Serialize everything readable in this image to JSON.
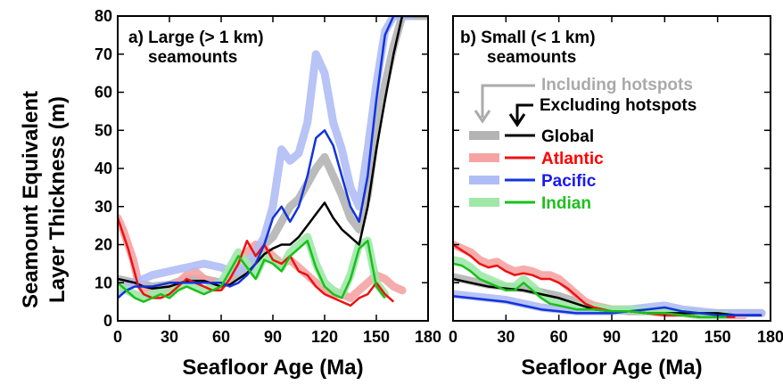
{
  "y_axis_title_line1": "Seamount Equivalent",
  "y_axis_title_line2": "Layer Thickness (m)",
  "legend": {
    "including_label": "Including hotspots",
    "excluding_label": "Excluding hotspots",
    "entries": [
      {
        "label": "Global",
        "text_color": "#000000",
        "band_color": "#b4b4b4",
        "line_color": "#000000"
      },
      {
        "label": "Atlantic",
        "text_color": "#ff0000",
        "band_color": "#f5a3a3",
        "line_color": "#ee1111"
      },
      {
        "label": "Pacific",
        "text_color": "#1a1aee",
        "band_color": "#b0bcf5",
        "line_color": "#1133dd"
      },
      {
        "label": "Indian",
        "text_color": "#1ec01e",
        "band_color": "#9fe8a8",
        "line_color": "#19c019"
      }
    ]
  },
  "chart_data": [
    {
      "type": "line",
      "title_line1": "a) Large (> 1 km)",
      "title_line2": "seamounts",
      "xlabel": "Seafloor Age (Ma)",
      "ylabel": "Seamount Equivalent Layer Thickness (m)",
      "xlim": [
        0,
        180
      ],
      "ylim": [
        0,
        80
      ],
      "xticks": [
        0,
        30,
        60,
        90,
        120,
        150,
        180
      ],
      "yticks": [
        0,
        10,
        20,
        30,
        40,
        50,
        60,
        70,
        80
      ],
      "series": [
        {
          "name": "Global",
          "variant": "including hotspots",
          "x": [
            0,
            5,
            10,
            15,
            20,
            30,
            40,
            50,
            60,
            65,
            70,
            75,
            80,
            85,
            90,
            95,
            100,
            105,
            110,
            115,
            120,
            125,
            130,
            135,
            140,
            145,
            150,
            155,
            160,
            165,
            170,
            175,
            180
          ],
          "y": [
            11,
            10.5,
            10,
            9.5,
            9,
            9.5,
            11,
            11,
            10,
            10.5,
            12,
            14,
            17,
            20,
            22,
            26,
            30,
            32,
            36,
            40,
            43,
            38,
            33,
            27,
            24,
            33,
            50,
            62,
            72,
            80,
            80,
            80,
            80
          ]
        },
        {
          "name": "Global",
          "variant": "excluding hotspots",
          "x": [
            0,
            5,
            10,
            15,
            20,
            30,
            40,
            50,
            60,
            65,
            70,
            75,
            80,
            85,
            90,
            95,
            100,
            105,
            110,
            115,
            120,
            125,
            130,
            135,
            140,
            145,
            150,
            155,
            160,
            165,
            170,
            175,
            180
          ],
          "y": [
            11,
            10.5,
            10,
            9,
            8.5,
            9,
            10.5,
            10.5,
            9,
            9.5,
            11,
            12.5,
            15,
            17.5,
            19,
            20,
            20,
            22,
            25,
            28,
            31,
            27,
            24,
            22,
            20,
            30,
            45,
            58,
            70,
            80,
            80,
            80,
            80
          ]
        },
        {
          "name": "Atlantic",
          "variant": "including hotspots",
          "x": [
            0,
            3,
            6,
            9,
            12,
            15,
            20,
            25,
            30,
            35,
            40,
            45,
            50,
            55,
            60,
            65,
            70,
            75,
            80,
            85,
            90,
            95,
            100,
            105,
            110,
            115,
            120,
            125,
            130,
            135,
            140,
            145,
            150,
            155,
            160,
            165
          ],
          "y": [
            27,
            24,
            20,
            16,
            10,
            8,
            7,
            7,
            8,
            10,
            12,
            13,
            11,
            10,
            9,
            12,
            16,
            18,
            20,
            19,
            17,
            15,
            16,
            14,
            12,
            10,
            8,
            7,
            7,
            6,
            8,
            10,
            12,
            11,
            9,
            8
          ]
        },
        {
          "name": "Atlantic",
          "variant": "excluding hotspots",
          "x": [
            0,
            3,
            6,
            9,
            12,
            15,
            20,
            25,
            30,
            35,
            40,
            45,
            50,
            55,
            60,
            65,
            70,
            75,
            80,
            85,
            90,
            95,
            100,
            105,
            110,
            115,
            120,
            125,
            130,
            135,
            140,
            145,
            150,
            155,
            160
          ],
          "y": [
            27,
            23,
            19,
            14,
            9,
            7,
            6,
            6,
            7,
            9,
            11,
            10,
            9,
            8,
            8,
            11,
            15,
            21,
            17,
            20,
            16,
            15,
            17,
            13,
            12,
            9,
            7,
            6,
            5,
            4,
            6,
            7,
            10,
            7,
            5
          ]
        },
        {
          "name": "Pacific",
          "variant": "including hotspots",
          "x": [
            0,
            5,
            10,
            15,
            20,
            30,
            40,
            50,
            60,
            65,
            70,
            75,
            80,
            85,
            90,
            95,
            100,
            105,
            110,
            115,
            120,
            125,
            130,
            135,
            140,
            145,
            150,
            155,
            160,
            165,
            170
          ],
          "y": [
            7,
            9,
            10,
            11,
            12,
            13,
            14,
            15,
            14,
            13,
            13,
            15,
            18,
            22,
            30,
            45,
            42,
            44,
            52,
            70,
            65,
            52,
            45,
            35,
            30,
            45,
            62,
            76,
            80,
            80,
            80
          ]
        },
        {
          "name": "Pacific",
          "variant": "excluding hotspots",
          "x": [
            0,
            5,
            10,
            15,
            20,
            30,
            40,
            50,
            60,
            65,
            70,
            75,
            80,
            85,
            90,
            95,
            100,
            105,
            110,
            115,
            120,
            125,
            130,
            135,
            140,
            145,
            150,
            155,
            160,
            165
          ],
          "y": [
            6,
            8,
            9,
            9,
            9,
            10,
            10,
            10,
            10,
            9,
            10,
            12,
            15,
            20,
            27,
            30,
            26,
            30,
            38,
            48,
            50,
            46,
            38,
            30,
            26,
            38,
            58,
            75,
            80,
            80
          ]
        },
        {
          "name": "Indian",
          "variant": "including hotspots",
          "x": [
            0,
            5,
            10,
            15,
            20,
            25,
            30,
            35,
            40,
            45,
            50,
            55,
            60,
            65,
            70,
            75,
            80,
            85,
            90,
            95,
            100,
            105,
            110,
            115,
            120,
            125,
            130,
            135,
            140,
            145,
            150,
            155
          ],
          "y": [
            9,
            8,
            7,
            6,
            7,
            8,
            7,
            9,
            10,
            9,
            8,
            9,
            10,
            14,
            18,
            15,
            12,
            17,
            16,
            14,
            18,
            20,
            22,
            15,
            10,
            8,
            7,
            12,
            20,
            21,
            10,
            7
          ]
        },
        {
          "name": "Indian",
          "variant": "excluding hotspots",
          "x": [
            0,
            5,
            10,
            15,
            20,
            25,
            30,
            35,
            40,
            45,
            50,
            55,
            60,
            65,
            70,
            75,
            80,
            85,
            90,
            95,
            100,
            105,
            110,
            115,
            120,
            125,
            130,
            135,
            140,
            145,
            150,
            155
          ],
          "y": [
            10,
            8,
            6,
            5,
            6,
            7,
            6,
            8,
            9,
            8,
            7,
            8,
            9,
            13,
            17,
            14,
            11,
            16,
            15,
            13,
            17,
            19,
            21,
            14,
            9,
            7,
            6,
            11,
            19,
            21,
            9,
            6
          ]
        }
      ]
    },
    {
      "type": "line",
      "title_line1": "b) Small (< 1 km)",
      "title_line2": "seamounts",
      "xlabel": "Seafloor Age (Ma)",
      "xlim": [
        0,
        180
      ],
      "ylim": [
        0,
        80
      ],
      "xticks": [
        0,
        30,
        60,
        90,
        120,
        150,
        180
      ],
      "yticks": [
        0,
        10,
        20,
        30,
        40,
        50,
        60,
        70,
        80
      ],
      "series": [
        {
          "name": "Global",
          "variant": "including hotspots",
          "x": [
            0,
            10,
            20,
            30,
            40,
            50,
            60,
            70,
            80,
            90,
            100,
            110,
            120,
            130,
            140,
            150,
            160,
            170,
            175
          ],
          "y": [
            11.5,
            10.5,
            9.5,
            9,
            8.5,
            7.5,
            6.5,
            5,
            3.5,
            3,
            2.5,
            2.5,
            2.5,
            2.5,
            2,
            2,
            2,
            2,
            2
          ]
        },
        {
          "name": "Global",
          "variant": "excluding hotspots",
          "x": [
            0,
            10,
            20,
            30,
            40,
            50,
            60,
            70,
            80,
            90,
            100,
            110,
            120,
            130,
            140,
            150,
            160,
            170,
            175
          ],
          "y": [
            11,
            10,
            9,
            8.5,
            8,
            7,
            6,
            4.5,
            3,
            2.5,
            2.5,
            2,
            2,
            2,
            2,
            2,
            1.5,
            1.5,
            1.5
          ]
        },
        {
          "name": "Atlantic",
          "variant": "including hotspots",
          "x": [
            0,
            5,
            10,
            15,
            20,
            25,
            30,
            35,
            40,
            45,
            50,
            55,
            60,
            65,
            70,
            75,
            80,
            90,
            100,
            110,
            120,
            130,
            140,
            150,
            160,
            165
          ],
          "y": [
            20,
            19,
            18,
            16,
            15,
            15.5,
            14,
            13,
            13.5,
            13,
            12,
            12,
            11,
            9,
            7,
            5,
            4,
            3,
            3,
            2.5,
            2,
            2,
            1.5,
            1.5,
            1.5,
            1.5
          ]
        },
        {
          "name": "Atlantic",
          "variant": "excluding hotspots",
          "x": [
            0,
            5,
            10,
            15,
            20,
            25,
            30,
            35,
            40,
            45,
            50,
            55,
            60,
            65,
            70,
            75,
            80,
            90,
            100,
            110,
            120,
            130,
            140,
            150,
            160
          ],
          "y": [
            20,
            18.5,
            17,
            15,
            14,
            14.5,
            13,
            12,
            12.5,
            12,
            11,
            11,
            10,
            8.5,
            6.5,
            4.5,
            3.5,
            2.5,
            2.5,
            2,
            1.5,
            1.5,
            1,
            1,
            1
          ]
        },
        {
          "name": "Pacific",
          "variant": "including hotspots",
          "x": [
            0,
            10,
            20,
            30,
            40,
            50,
            60,
            70,
            80,
            90,
            100,
            110,
            120,
            130,
            140,
            150,
            160,
            170,
            175
          ],
          "y": [
            7,
            6.5,
            6,
            5.5,
            4.5,
            3.5,
            3,
            2.5,
            2.5,
            2.5,
            3,
            3.5,
            4,
            3,
            2.5,
            2,
            2,
            2,
            2
          ]
        },
        {
          "name": "Pacific",
          "variant": "excluding hotspots",
          "x": [
            0,
            10,
            20,
            30,
            40,
            50,
            60,
            70,
            80,
            90,
            100,
            110,
            120,
            130,
            140,
            150,
            160,
            170,
            175
          ],
          "y": [
            6.5,
            6,
            5.5,
            5,
            4,
            3,
            2.5,
            2,
            2,
            2,
            2.5,
            3,
            3.5,
            2.5,
            2,
            1.5,
            1.5,
            1.5,
            1.5
          ]
        },
        {
          "name": "Indian",
          "variant": "including hotspots",
          "x": [
            0,
            5,
            10,
            15,
            20,
            25,
            30,
            35,
            40,
            45,
            50,
            55,
            60,
            65,
            70,
            80,
            90,
            100,
            110,
            120,
            130,
            140,
            150,
            155
          ],
          "y": [
            16,
            15.5,
            14,
            12,
            11,
            10,
            9,
            9,
            11,
            9,
            7,
            5.5,
            5,
            4.5,
            4,
            3.5,
            3,
            3,
            2.5,
            2.5,
            2,
            1.5,
            1.5,
            1.5
          ]
        },
        {
          "name": "Indian",
          "variant": "excluding hotspots",
          "x": [
            0,
            5,
            10,
            15,
            20,
            25,
            30,
            35,
            40,
            45,
            50,
            55,
            60,
            65,
            70,
            80,
            90,
            100,
            110,
            120,
            130,
            140,
            150,
            155
          ],
          "y": [
            15,
            14.5,
            13,
            11,
            10,
            9,
            8,
            8,
            10,
            8,
            6,
            4.5,
            4,
            3.5,
            3,
            3,
            2.5,
            2.5,
            2,
            2,
            1.5,
            1,
            1,
            1
          ]
        }
      ]
    }
  ]
}
